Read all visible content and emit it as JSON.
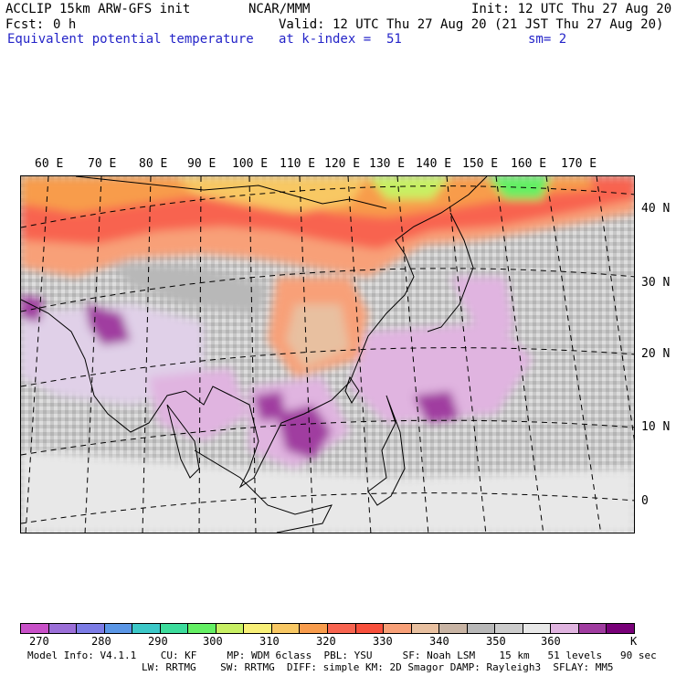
{
  "header": {
    "model": "ACCLIP 15km ARW-GFS init",
    "org": "NCAR/MMM",
    "init": "Init: 12 UTC Thu 27 Aug 20",
    "fcst_label": "Fcst:",
    "fcst_value": "0 h",
    "valid": "Valid: 12 UTC Thu 27 Aug 20 (21 JST Thu 27 Aug 20)",
    "field": "Equivalent potential temperature",
    "level": "at k-index =  51",
    "smooth": "sm= 2"
  },
  "map": {
    "lon_labels": [
      "60 E",
      "70 E",
      "80 E",
      "90 E",
      "100 E",
      "110 E",
      "120 E",
      "130 E",
      "140 E",
      "150 E",
      "160 E",
      "170 E"
    ],
    "lat_labels": [
      "40 N",
      "30 N",
      "20 N",
      "10 N",
      "0"
    ]
  },
  "colorbar": {
    "colors": [
      "#c850c8",
      "#9b6fd8",
      "#7c7ce6",
      "#5a96e6",
      "#3cc8c8",
      "#3cdc9c",
      "#64f064",
      "#c8f064",
      "#f8f078",
      "#f8c864",
      "#f89c4c",
      "#f86450",
      "#f8503c",
      "#f8a078",
      "#e8c0a0",
      "#c8b4a4",
      "#b8b8b8",
      "#cccccc",
      "#e8e8e8",
      "#e0b4e0",
      "#a03ca0",
      "#780078"
    ],
    "labels": [
      "270",
      "280",
      "290",
      "300",
      "310",
      "320",
      "330",
      "340",
      "350",
      "360"
    ],
    "unit": "K"
  },
  "footer": {
    "line1": "Model Info: V4.1.1    CU: KF     MP: WDM 6class  PBL: YSU     SF: Noah LSM    15 km   51 levels   90 sec",
    "line2": "LW: RRTMG    SW: RRTMG  DIFF: simple KM: 2D Smagor DAMP: Rayleigh3  SFLAY: MM5"
  }
}
